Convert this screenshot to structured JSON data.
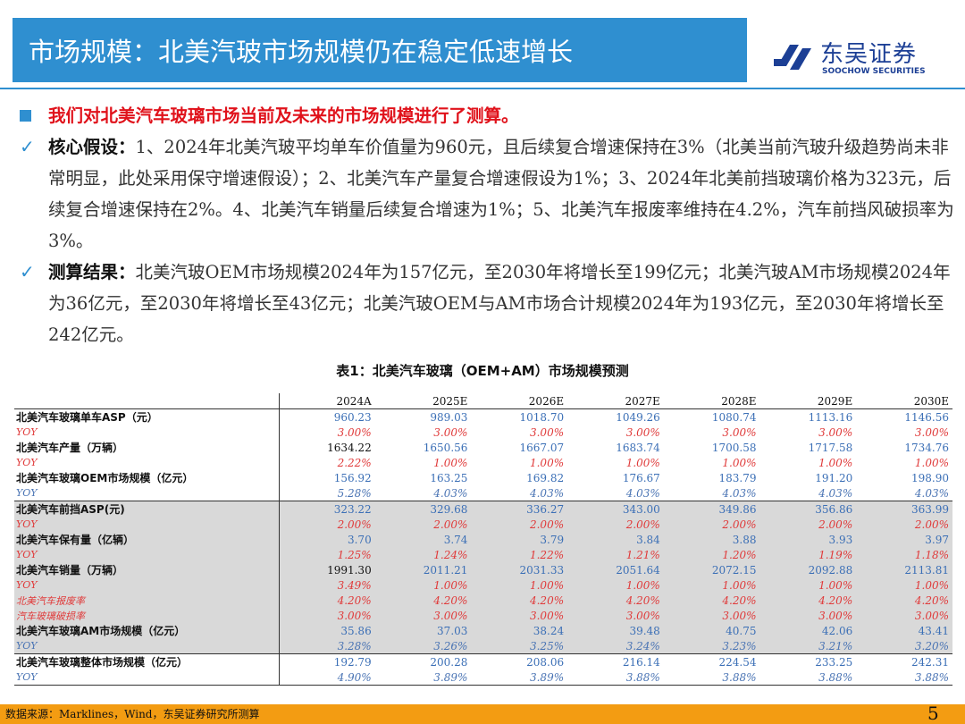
{
  "header": {
    "title": "市场规模：北美汽玻市场规模仍在稳定低速增长",
    "logo_cn": "东吴证券",
    "logo_en": "SOOCHOW SECURITIES"
  },
  "bullets": {
    "intro": "我们对北美汽车玻璃市场当前及未来的市场规模进行了测算。",
    "assume_label": "核心假设：",
    "assume_text": "1、2024年北美汽玻平均单车价值量为960元，且后续复合增速保持在3%（北美当前汽玻升级趋势尚未非常明显，此处采用保守增速假设）；2、北美汽车产量复合增速假设为1%；3、2024年北美前挡玻璃价格为323元，后续复合增速保持在2%。4、北美汽车销量后续复合增速为1%；5、北美汽车报废率维持在4.2%，汽车前挡风破损率为3%。",
    "result_label": "测算结果：",
    "result_text": "北美汽玻OEM市场规模2024年为157亿元，至2030年将增长至199亿元；北美汽玻AM市场规模2024年为36亿元，至2030年将增长至43亿元；北美汽玻OEM与AM市场合计规模2024年为193亿元，至2030年将增长至242亿元。"
  },
  "table": {
    "caption": "表1：北美汽车玻璃（OEM+AM）市场规模预测",
    "years": [
      "2024A",
      "2025E",
      "2026E",
      "2027E",
      "2028E",
      "2029E",
      "2030E"
    ],
    "rows": [
      {
        "label": "北美汽车玻璃单车ASP（元）",
        "values": [
          "960.23",
          "989.03",
          "1018.70",
          "1049.26",
          "1080.74",
          "1113.16",
          "1146.56"
        ]
      },
      {
        "label": "YOY",
        "values": [
          "3.00%",
          "3.00%",
          "3.00%",
          "3.00%",
          "3.00%",
          "3.00%",
          "3.00%"
        ]
      },
      {
        "label": "北美汽车产量（万辆）",
        "values": [
          "1634.22",
          "1650.56",
          "1667.07",
          "1683.74",
          "1700.58",
          "1717.58",
          "1734.76"
        ]
      },
      {
        "label": "YOY",
        "values": [
          "2.22%",
          "1.00%",
          "1.00%",
          "1.00%",
          "1.00%",
          "1.00%",
          "1.00%"
        ]
      },
      {
        "label": "北美汽车玻璃OEM市场规模（亿元）",
        "values": [
          "156.92",
          "163.25",
          "169.82",
          "176.67",
          "183.79",
          "191.20",
          "198.90"
        ]
      },
      {
        "label": "YOY",
        "values": [
          "5.28%",
          "4.03%",
          "4.03%",
          "4.03%",
          "4.03%",
          "4.03%",
          "4.03%"
        ]
      },
      {
        "label": "北美汽车前挡ASP(元)",
        "values": [
          "323.22",
          "329.68",
          "336.27",
          "343.00",
          "349.86",
          "356.86",
          "363.99"
        ]
      },
      {
        "label": "YOY",
        "values": [
          "2.00%",
          "2.00%",
          "2.00%",
          "2.00%",
          "2.00%",
          "2.00%",
          "2.00%"
        ]
      },
      {
        "label": "北美汽车保有量（亿辆）",
        "values": [
          "3.70",
          "3.74",
          "3.79",
          "3.84",
          "3.88",
          "3.93",
          "3.97"
        ]
      },
      {
        "label": "YOY",
        "values": [
          "1.25%",
          "1.24%",
          "1.22%",
          "1.21%",
          "1.20%",
          "1.19%",
          "1.18%"
        ]
      },
      {
        "label": "北美汽车销量（万辆）",
        "values": [
          "1991.30",
          "2011.21",
          "2031.33",
          "2051.64",
          "2072.15",
          "2092.88",
          "2113.81"
        ]
      },
      {
        "label": "YOY",
        "values": [
          "3.49%",
          "1.00%",
          "1.00%",
          "1.00%",
          "1.00%",
          "1.00%",
          "1.00%"
        ]
      },
      {
        "label": "北美汽车报废率",
        "values": [
          "4.20%",
          "4.20%",
          "4.20%",
          "4.20%",
          "4.20%",
          "4.20%",
          "4.20%"
        ]
      },
      {
        "label": "汽车玻璃破损率",
        "values": [
          "3.00%",
          "3.00%",
          "3.00%",
          "3.00%",
          "3.00%",
          "3.00%",
          "3.00%"
        ]
      },
      {
        "label": "北美汽车玻璃AM市场规模（亿元）",
        "values": [
          "35.86",
          "37.03",
          "38.24",
          "39.48",
          "40.75",
          "42.06",
          "43.41"
        ]
      },
      {
        "label": "YOY",
        "values": [
          "3.28%",
          "3.26%",
          "3.25%",
          "3.24%",
          "3.23%",
          "3.21%",
          "3.20%"
        ]
      },
      {
        "label": "北美汽车玻璃整体市场规模（亿元）",
        "values": [
          "192.79",
          "200.28",
          "208.06",
          "216.14",
          "224.54",
          "233.25",
          "242.31"
        ]
      },
      {
        "label": "YOY",
        "values": [
          "4.90%",
          "3.89%",
          "3.89%",
          "3.88%",
          "3.88%",
          "3.88%",
          "3.88%"
        ]
      }
    ]
  },
  "footer": {
    "source": "数据来源：Marklines，Wind，东吴证券研究所测算",
    "page": "5"
  },
  "colors": {
    "accent": "#2f8fd0",
    "red": "#e0121b",
    "footer": "#f39c12",
    "brand": "#1c3f95"
  }
}
